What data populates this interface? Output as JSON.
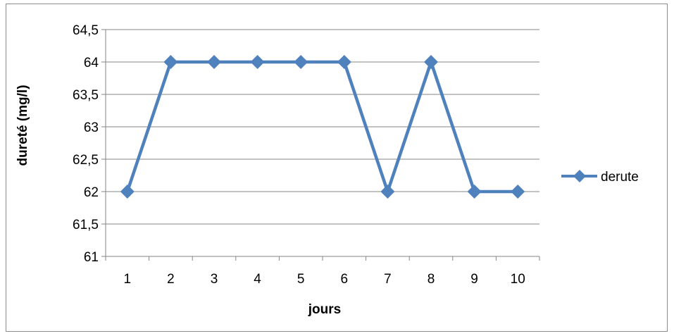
{
  "chart_data": {
    "type": "line",
    "title": "",
    "xlabel": "jours",
    "ylabel": "dureté (mg/l)",
    "categories": [
      "1",
      "2",
      "3",
      "4",
      "5",
      "6",
      "7",
      "8",
      "9",
      "10"
    ],
    "series": [
      {
        "name": "derute",
        "values": [
          62,
          64,
          64,
          64,
          64,
          64,
          62,
          64,
          62,
          62
        ],
        "color": "#4f81bd"
      }
    ],
    "ylim": [
      61,
      64.5
    ],
    "yticks": [
      "61",
      "61,5",
      "62",
      "62,5",
      "63",
      "63,5",
      "64",
      "64,5"
    ],
    "grid": true,
    "legend_position": "right",
    "marker": "diamond",
    "colors": {
      "series": "#4f81bd",
      "grid": "#868686",
      "axis": "#868686",
      "frame": "#8c8c8c"
    }
  }
}
